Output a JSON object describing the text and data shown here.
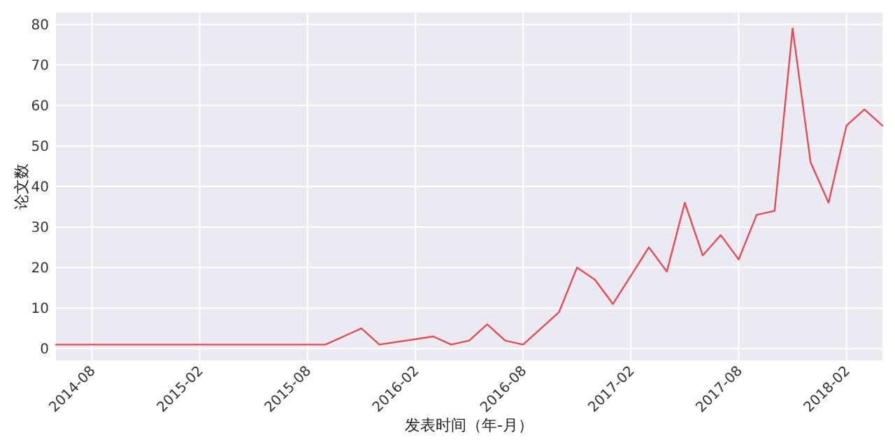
{
  "chart_data": {
    "type": "line",
    "xlabel": "发表时间（年-月）",
    "ylabel": "论文数",
    "x": [
      "2014-06",
      "2015-09",
      "2015-11",
      "2015-12",
      "2016-03",
      "2016-04",
      "2016-05",
      "2016-06",
      "2016-07",
      "2016-08",
      "2016-10",
      "2016-11",
      "2016-12",
      "2017-01",
      "2017-03",
      "2017-04",
      "2017-05",
      "2017-06",
      "2017-07",
      "2017-08",
      "2017-09",
      "2017-10",
      "2017-11",
      "2017-12",
      "2018-01",
      "2018-02",
      "2018-03",
      "2018-04"
    ],
    "series": [
      {
        "color": "#e84a52",
        "values": [
          1,
          1,
          5,
          1,
          3,
          1,
          2,
          6,
          2,
          1,
          9,
          20,
          17,
          11,
          25,
          19,
          36,
          23,
          28,
          22,
          33,
          34,
          79,
          46,
          36,
          55,
          59,
          55
        ]
      }
    ],
    "xlim": [
      "2014-06",
      "2018-04"
    ],
    "xticks": [
      "2014-08",
      "2015-02",
      "2015-08",
      "2016-02",
      "2016-08",
      "2017-02",
      "2017-08",
      "2018-02"
    ],
    "ylim": [
      -2.9,
      82.9
    ],
    "yticks": [
      0,
      10,
      20,
      30,
      40,
      50,
      60,
      70,
      80
    ],
    "grid": true
  }
}
